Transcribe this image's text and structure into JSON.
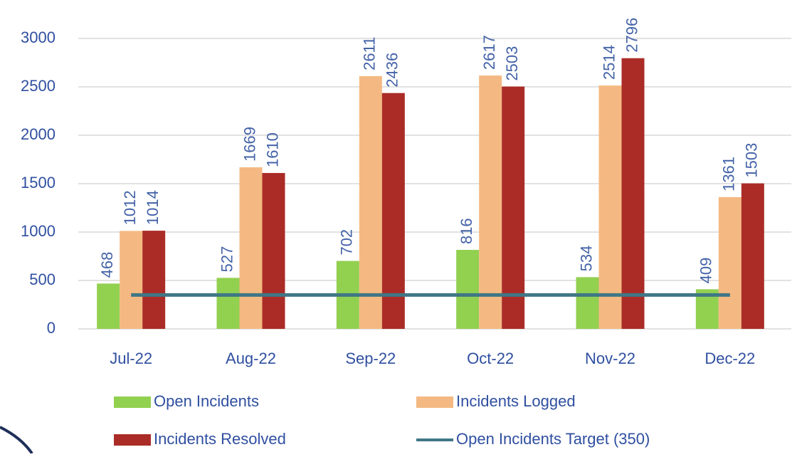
{
  "chart_data": {
    "type": "bar",
    "categories": [
      "Jul-22",
      "Aug-22",
      "Sep-22",
      "Oct-22",
      "Nov-22",
      "Dec-22"
    ],
    "series": [
      {
        "name": "Open Incidents",
        "color": "#92d050",
        "values": [
          468,
          527,
          702,
          816,
          534,
          409
        ]
      },
      {
        "name": "Incidents Logged",
        "color": "#f4b982",
        "values": [
          1012,
          1669,
          2611,
          2617,
          2514,
          1361
        ]
      },
      {
        "name": "Incidents Resolved",
        "color": "#ab2c27",
        "values": [
          1014,
          1610,
          2436,
          2503,
          2796,
          1503
        ]
      },
      {
        "name": "Open Incidents Target (350)",
        "type": "line",
        "color": "#3f7786",
        "values": [
          350,
          350,
          350,
          350,
          350,
          350
        ]
      }
    ],
    "ylim": [
      0,
      3000
    ],
    "yticks": [
      0,
      500,
      1000,
      1500,
      2000,
      2500,
      3000
    ],
    "grid": true
  }
}
